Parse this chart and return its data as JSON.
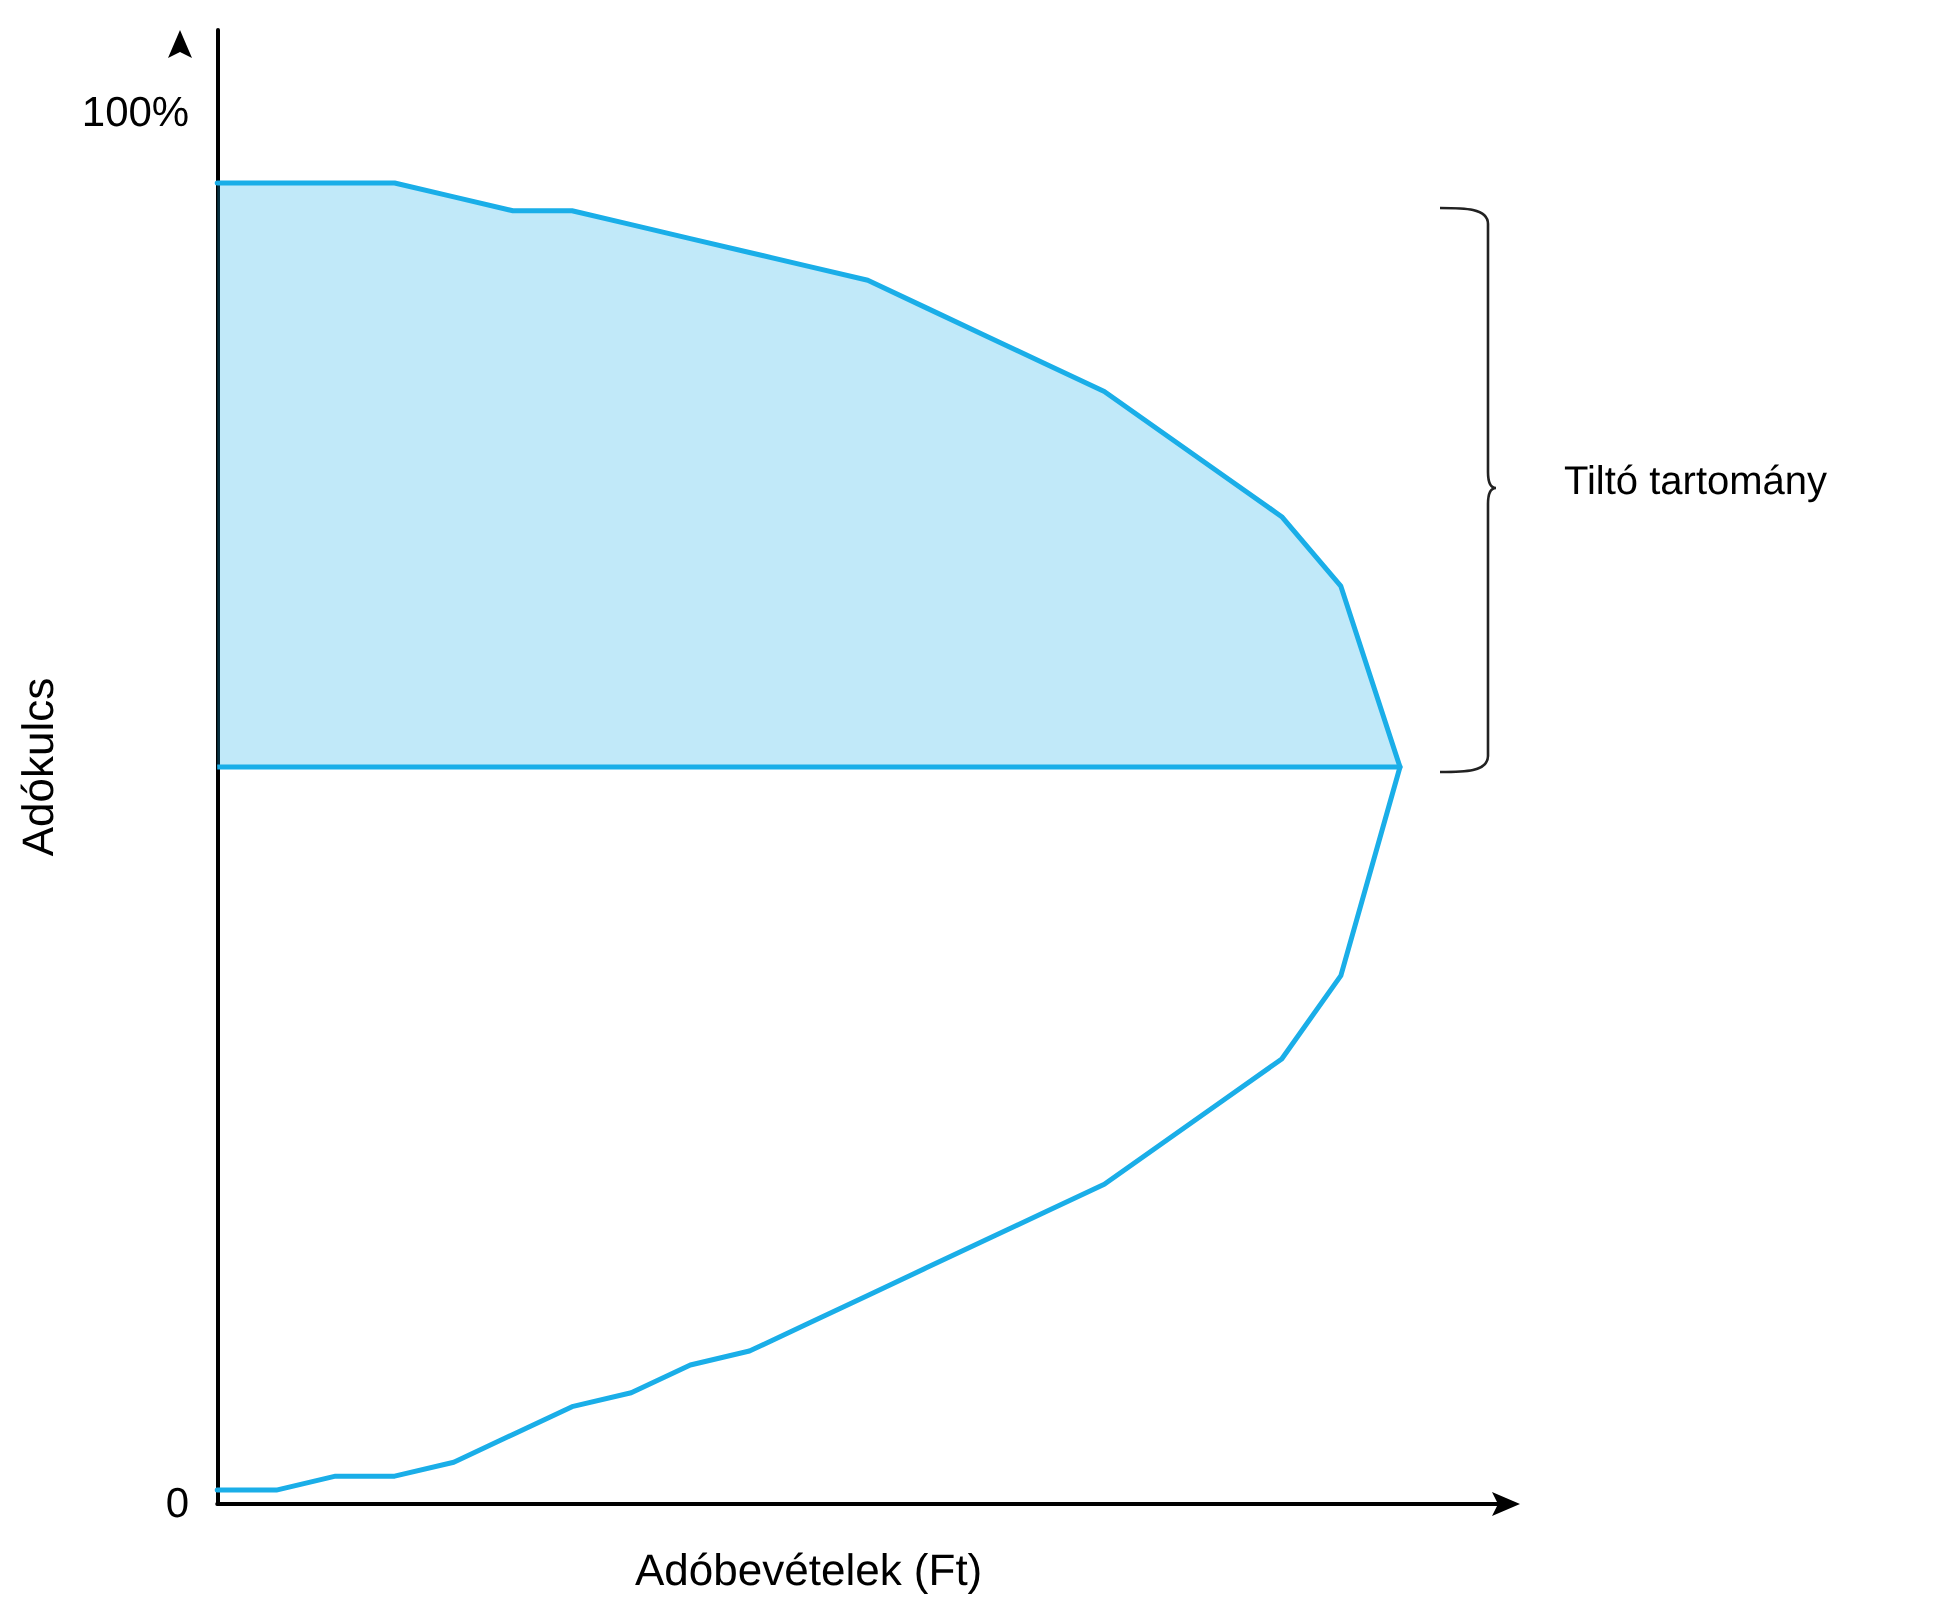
{
  "chart_data": {
    "type": "line",
    "xlabel": "Adóbevételek (Ft)",
    "ylabel": "Adókulcs",
    "annotations": [
      "Tiltó tartomány"
    ],
    "categories": [
      null,
      null,
      null,
      null,
      null,
      null,
      null,
      null,
      null,
      null,
      null,
      null,
      null,
      null,
      null,
      null,
      null,
      null,
      null,
      null,
      null
    ],
    "ylim": [
      0,
      106
    ],
    "yticks": [
      {
        "value": 0,
        "label": "0"
      },
      {
        "value": 100,
        "label": "100%"
      }
    ],
    "tick_labels": "y",
    "grid": false,
    "marker": "none",
    "series": [
      {
        "color": "#1aaee8",
        "values": [
          1,
          1,
          2,
          2,
          3,
          5,
          7,
          8,
          10,
          11,
          13,
          15,
          17,
          19,
          21,
          23,
          26,
          29,
          32,
          38,
          53
        ]
      },
      {
        "color": "#1aaee8",
        "values": [
          95,
          95,
          95,
          95,
          94,
          93,
          93,
          92,
          91,
          90,
          89,
          88,
          86,
          84,
          82,
          80,
          77,
          74,
          71,
          66,
          53
        ],
        "lower": [
          53,
          53,
          53,
          53,
          53,
          53,
          53,
          53,
          53,
          53,
          53,
          53,
          53,
          53,
          53,
          53,
          53,
          53,
          53,
          53,
          53
        ],
        "upper": [
          95,
          95,
          95,
          95,
          94,
          93,
          93,
          92,
          91,
          90,
          89,
          88,
          86,
          84,
          82,
          80,
          77,
          74,
          71,
          66,
          53
        ]
      }
    ],
    "ref_lines": [
      {
        "axis": "y",
        "value": 53,
        "color": "#1aaee8"
      }
    ]
  }
}
